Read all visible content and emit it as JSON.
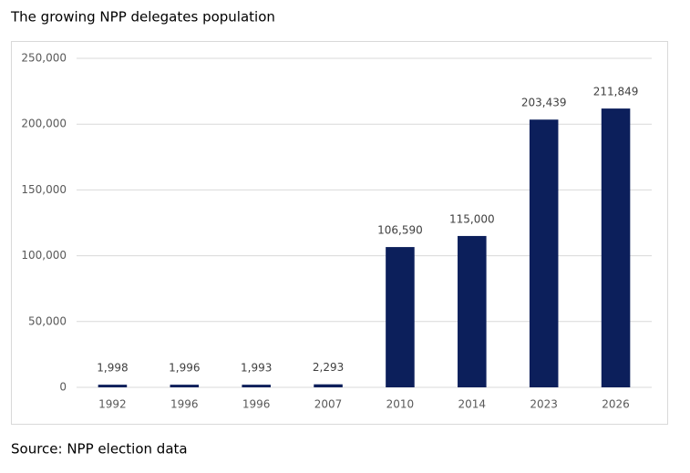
{
  "chart_data": {
    "type": "bar",
    "title": "The growing NPP delegates population",
    "source": "Source: NPP election data",
    "categories": [
      "1992",
      "1996",
      "1996",
      "2007",
      "2010",
      "2014",
      "2023",
      "2026"
    ],
    "values": [
      1998,
      1996,
      1993,
      2293,
      106590,
      115000,
      203439,
      211849
    ],
    "value_labels": [
      "1,998",
      "1,996",
      "1,993",
      "2,293",
      "106,590",
      "115,000",
      "203,439",
      "211,849"
    ],
    "color": "#0c1f5b",
    "ylim": [
      0,
      250000
    ],
    "yticks": [
      0,
      {
        "value": 50000,
        "label": "50,000"
      },
      {
        "value": 100000,
        "label": "100,000"
      },
      {
        "value": 150000,
        "label": "150,000"
      },
      {
        "value": 200000,
        "label": "200,000"
      },
      {
        "value": 250000,
        "label": "250,000"
      }
    ],
    "grid": true
  }
}
